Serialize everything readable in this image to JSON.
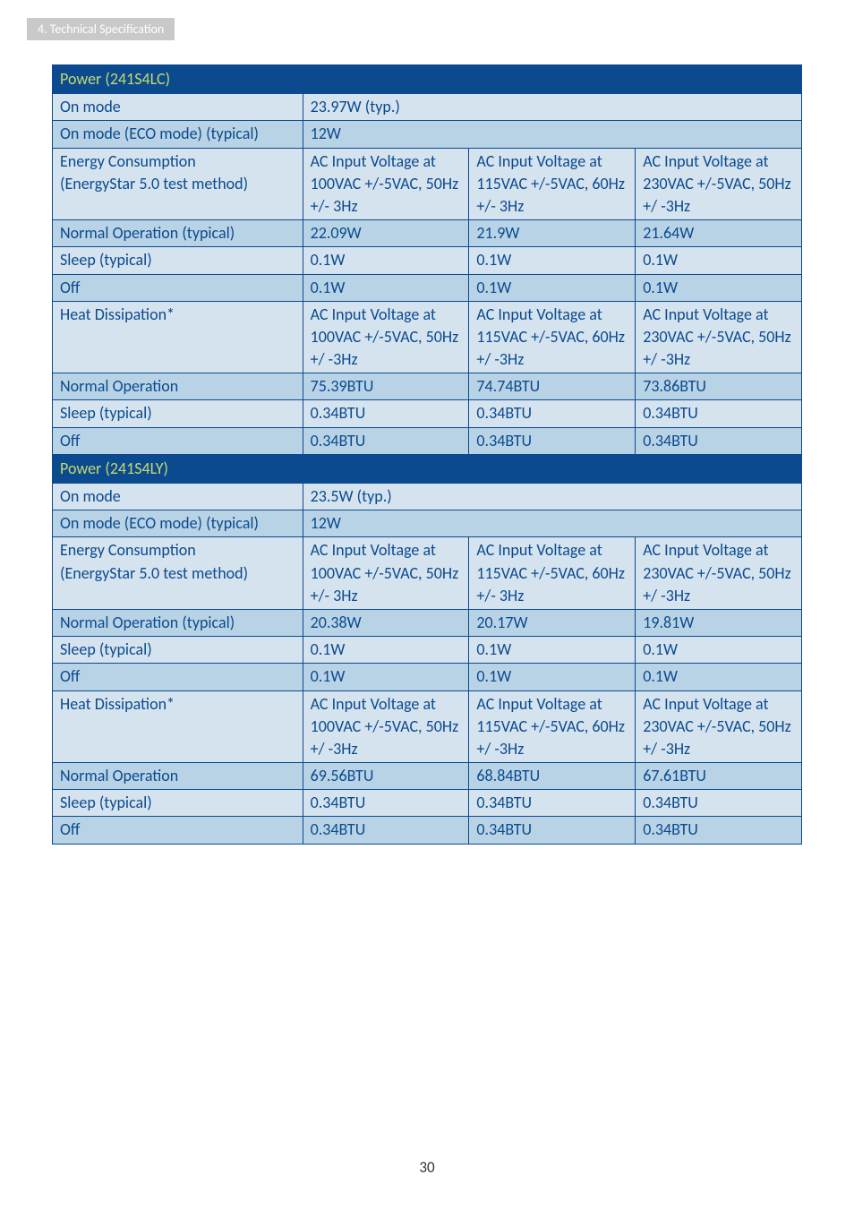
{
  "header_tab": "4. Technical Specification",
  "page_number": "30",
  "table1": {
    "header": "Power (241S4LC)",
    "rows": [
      {
        "label": "On mode",
        "span": "23.97W (typ.)",
        "class": "row-light"
      },
      {
        "label": "On mode (ECO mode) (typical)",
        "span": "12W",
        "class": "row-dark"
      },
      {
        "label": "Energy Consumption\n(EnergyStar 5.0 test method)",
        "c1": "AC Input Voltage at 100VAC +/-5VAC, 50Hz +/- 3Hz",
        "c2": "AC Input Voltage at 115VAC +/-5VAC, 60Hz +/- 3Hz",
        "c3": "AC Input Voltage at 230VAC +/-5VAC, 50Hz +/ -3Hz",
        "class": "row-light"
      },
      {
        "label": "Normal Operation (typical)",
        "c1": "22.09W",
        "c2": "21.9W",
        "c3": "21.64W",
        "class": "row-dark"
      },
      {
        "label": "Sleep (typical)",
        "c1": "0.1W",
        "c2": "0.1W",
        "c3": "0.1W",
        "class": "row-light"
      },
      {
        "label": "Off",
        "c1": "0.1W",
        "c2": "0.1W",
        "c3": "0.1W",
        "class": "row-dark"
      },
      {
        "label": "Heat Dissipation*",
        "c1": "AC Input Voltage at 100VAC +/-5VAC, 50Hz +/ -3Hz",
        "c2": "AC Input Voltage at 115VAC +/-5VAC, 60Hz +/ -3Hz",
        "c3": "AC Input Voltage at 230VAC +/-5VAC, 50Hz +/ -3Hz",
        "class": "row-light"
      },
      {
        "label": "Normal Operation",
        "c1": "75.39BTU",
        "c2": "74.74BTU",
        "c3": "73.86BTU",
        "class": "row-dark"
      },
      {
        "label": "Sleep (typical)",
        "c1": "0.34BTU",
        "c2": "0.34BTU",
        "c3": "0.34BTU",
        "class": "row-light"
      },
      {
        "label": "Off",
        "c1": "0.34BTU",
        "c2": "0.34BTU",
        "c3": "0.34BTU",
        "class": "row-dark"
      }
    ]
  },
  "table2": {
    "header": "Power (241S4LY)",
    "rows": [
      {
        "label": "On mode",
        "span": "23.5W (typ.)",
        "class": "row-light"
      },
      {
        "label": "On mode (ECO mode) (typical)",
        "span": "12W",
        "class": "row-dark"
      },
      {
        "label": "Energy Consumption\n(EnergyStar 5.0 test method)",
        "c1": "AC Input Voltage at 100VAC +/-5VAC, 50Hz +/- 3Hz",
        "c2": "AC Input Voltage at 115VAC +/-5VAC, 60Hz +/- 3Hz",
        "c3": "AC Input Voltage at 230VAC +/-5VAC, 50Hz +/ -3Hz",
        "class": "row-light"
      },
      {
        "label": "Normal Operation (typical)",
        "c1": "20.38W",
        "c2": "20.17W",
        "c3": "19.81W",
        "class": "row-dark"
      },
      {
        "label": "Sleep (typical)",
        "c1": "0.1W",
        "c2": "0.1W",
        "c3": "0.1W",
        "class": "row-light"
      },
      {
        "label": "Off",
        "c1": "0.1W",
        "c2": "0.1W",
        "c3": "0.1W",
        "class": "row-dark"
      },
      {
        "label": "Heat Dissipation*",
        "c1": "AC Input Voltage at 100VAC +/-5VAC, 50Hz +/ -3Hz",
        "c2": "AC Input Voltage at 115VAC +/-5VAC, 60Hz +/ -3Hz",
        "c3": "AC Input Voltage at 230VAC +/-5VAC, 50Hz +/ -3Hz",
        "class": "row-light"
      },
      {
        "label": "Normal Operation",
        "c1": "69.56BTU",
        "c2": "68.84BTU",
        "c3": "67.61BTU",
        "class": "row-dark"
      },
      {
        "label": "Sleep (typical)",
        "c1": "0.34BTU",
        "c2": "0.34BTU",
        "c3": "0.34BTU",
        "class": "row-light"
      },
      {
        "label": "Off",
        "c1": "0.34BTU",
        "c2": "0.34BTU",
        "c3": "0.34BTU",
        "class": "row-dark"
      }
    ]
  }
}
